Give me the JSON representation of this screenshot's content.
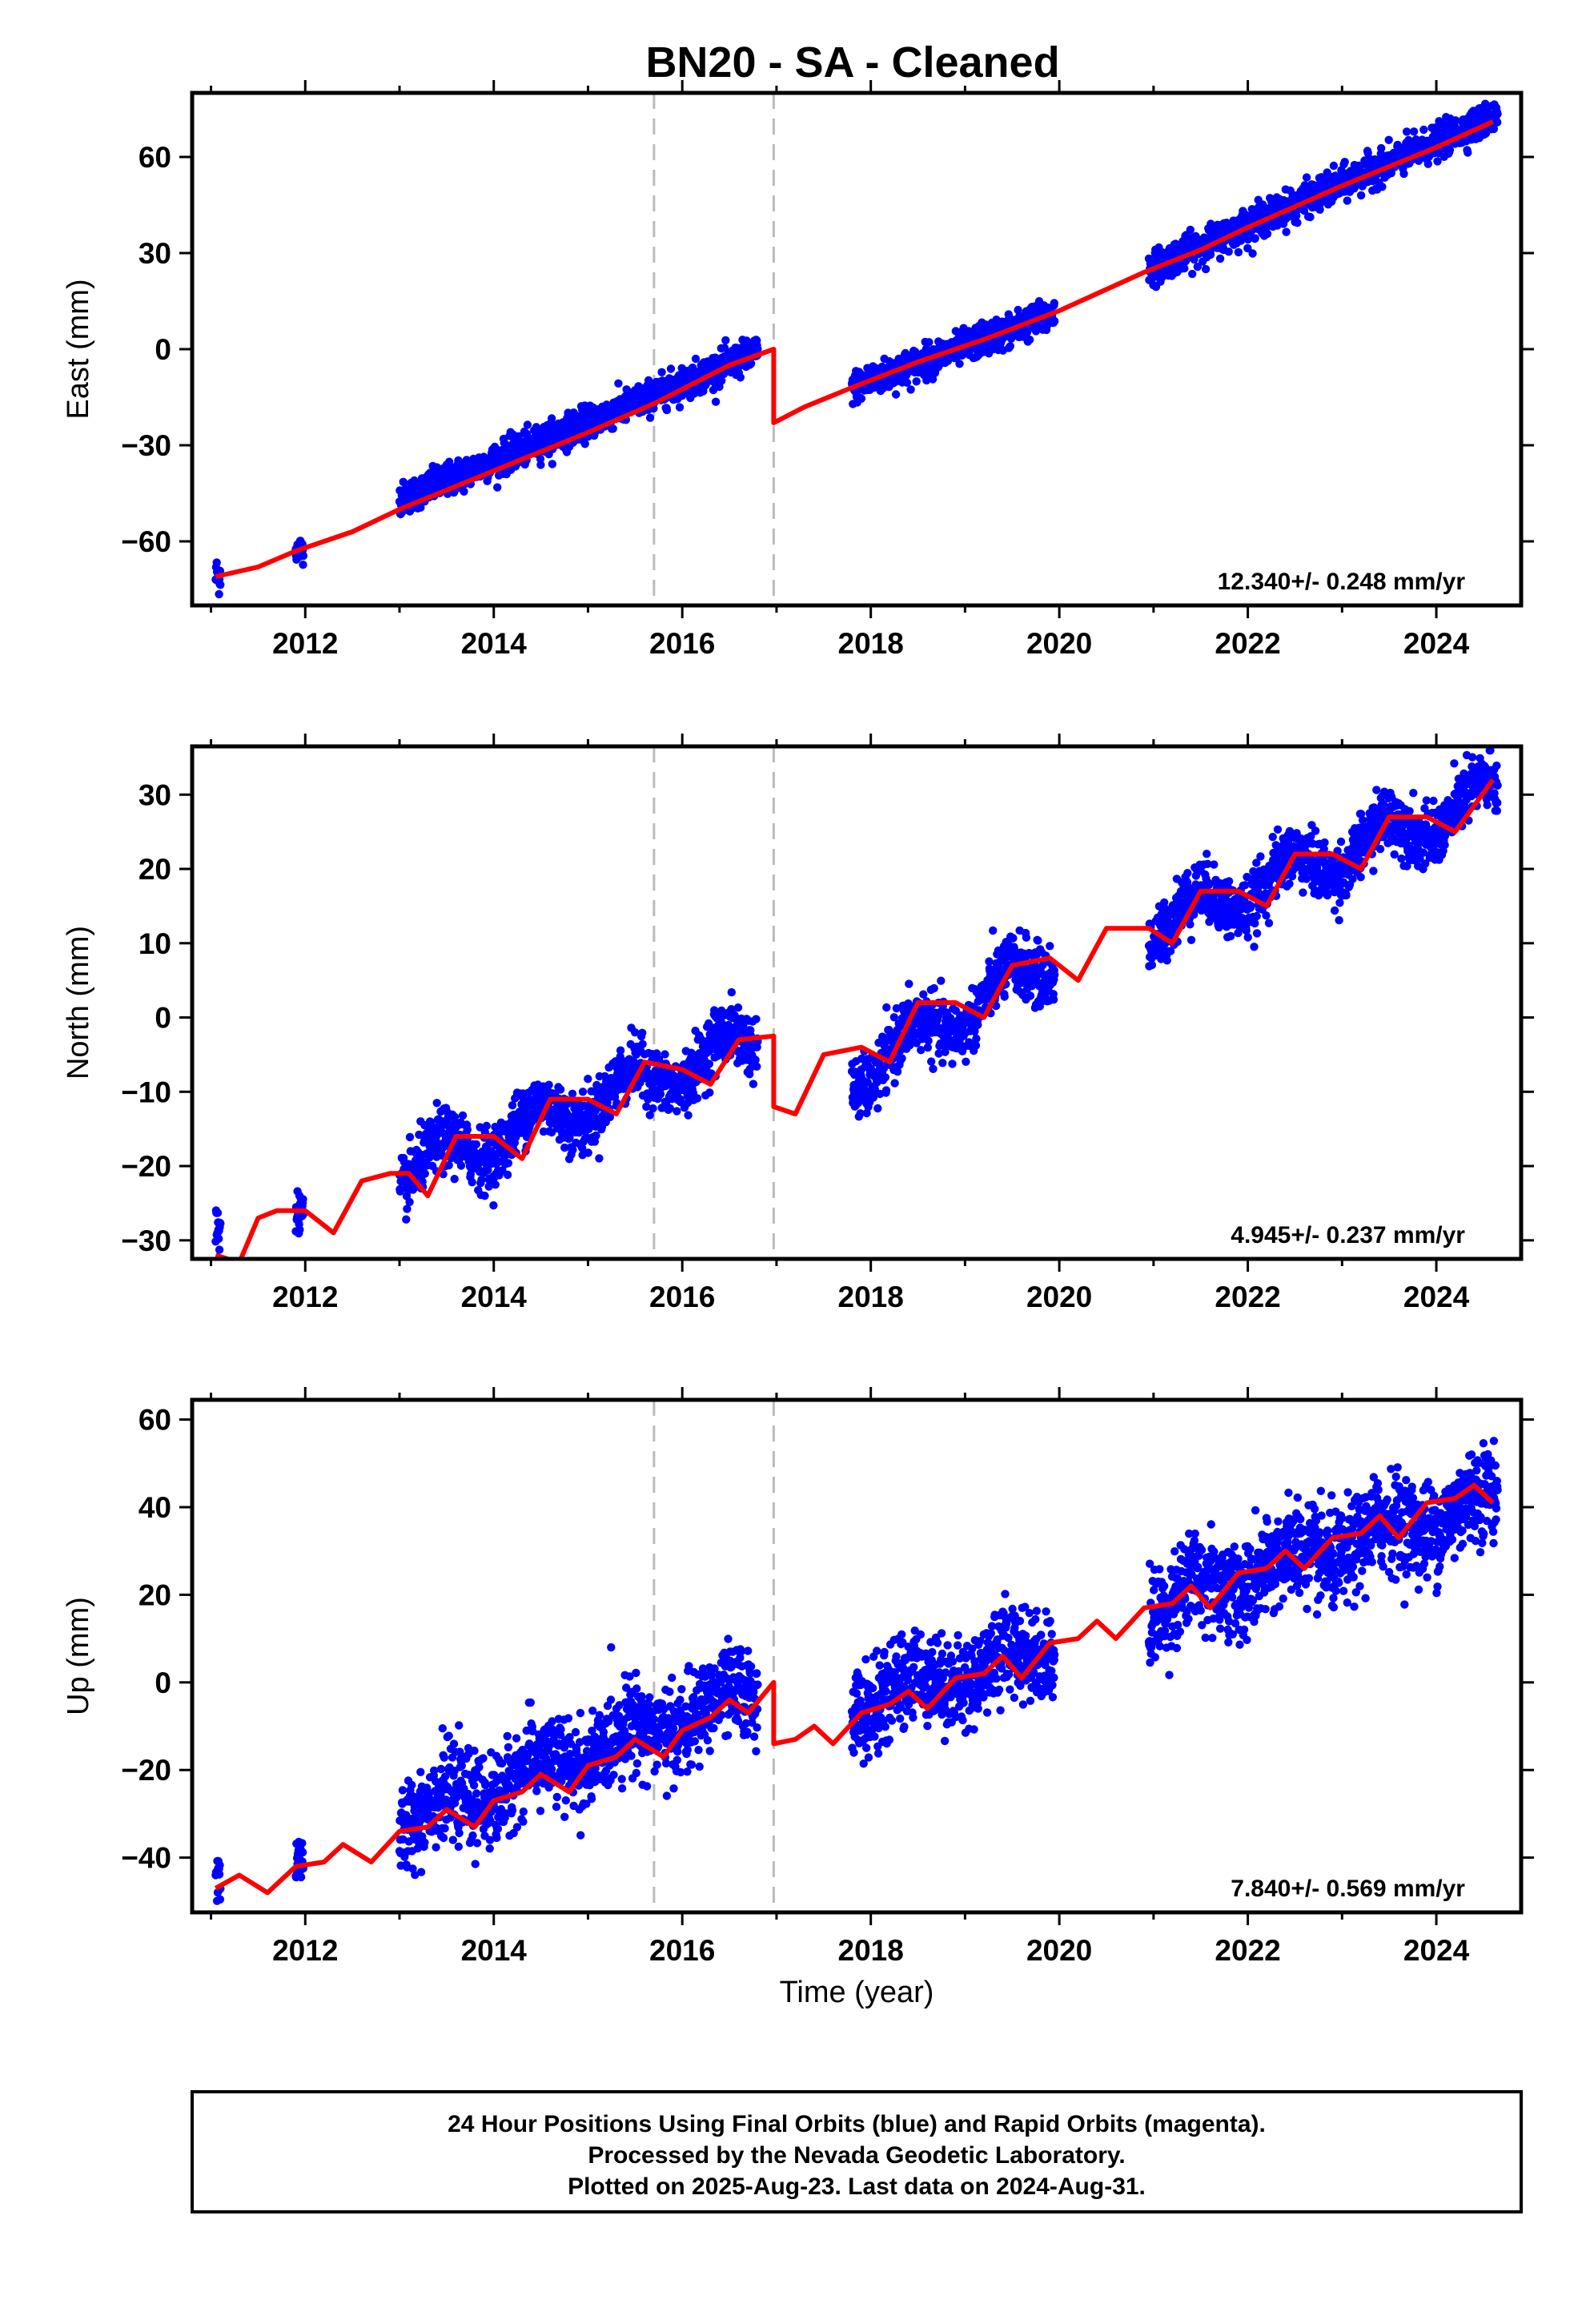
{
  "title": "BN20  - SA - Cleaned",
  "x_axis_title": "Time (year)",
  "colors": {
    "data": "#0000ff",
    "model": "#ff0000",
    "breaks": "#bbbbbb",
    "frame": "#000000"
  },
  "footer": {
    "line1": "24 Hour Positions Using Final Orbits (blue) and Rapid Orbits (magenta).",
    "line2": "Processed by the Nevada Geodetic Laboratory.",
    "line3": "Plotted on 2025-Aug-23. Last data on 2024-Aug-31."
  },
  "chart_data": [
    {
      "type": "scatter",
      "component": "east",
      "ylabel": "East (mm)",
      "rate": "12.340+/- 0.248 mm/yr",
      "xlim": [
        2010.8,
        2024.9
      ],
      "ylim": [
        -80,
        80
      ],
      "xticks": [
        2012,
        2014,
        2016,
        2018,
        2020,
        2022,
        2024
      ],
      "yticks": [
        -60,
        -30,
        0,
        30,
        60
      ],
      "breaks": [
        2015.7,
        2016.97
      ],
      "model": [
        [
          2011.05,
          -71
        ],
        [
          2011.5,
          -68
        ],
        [
          2011.9,
          -63
        ],
        [
          2012.5,
          -57
        ],
        [
          2013.0,
          -50
        ],
        [
          2014.0,
          -38
        ],
        [
          2015.0,
          -26
        ],
        [
          2015.7,
          -17
        ],
        [
          2016.5,
          -5
        ],
        [
          2016.97,
          0
        ],
        [
          2016.97,
          -23
        ],
        [
          2017.3,
          -18
        ],
        [
          2017.8,
          -12
        ],
        [
          2018.5,
          -4
        ],
        [
          2019.2,
          3
        ],
        [
          2020.0,
          12
        ],
        [
          2020.9,
          24
        ],
        [
          2021.5,
          31
        ],
        [
          2022.0,
          38
        ],
        [
          2023.0,
          51
        ],
        [
          2024.0,
          63
        ],
        [
          2024.6,
          71
        ]
      ],
      "segments": [
        {
          "start": 2011.05,
          "end": 2011.1,
          "y0": -71,
          "y1": -70,
          "sd": 3
        },
        {
          "start": 2011.9,
          "end": 2011.98,
          "y0": -63,
          "y1": -62,
          "sd": 2
        },
        {
          "start": 2013.0,
          "end": 2016.8,
          "y0": -47,
          "y1": -1,
          "sd": 2.5
        },
        {
          "start": 2017.8,
          "end": 2019.95,
          "y0": -12,
          "y1": 11,
          "sd": 2.5
        },
        {
          "start": 2020.95,
          "end": 2024.65,
          "y0": 25,
          "y1": 73,
          "sd": 2.5
        }
      ]
    },
    {
      "type": "scatter",
      "component": "north",
      "ylabel": "North (mm)",
      "rate": "4.945+/- 0.237 mm/yr",
      "xlim": [
        2010.8,
        2024.9
      ],
      "ylim": [
        -32.5,
        36.5
      ],
      "xticks": [
        2012,
        2014,
        2016,
        2018,
        2020,
        2022,
        2024
      ],
      "yticks": [
        -30,
        -20,
        -10,
        0,
        10,
        20,
        30
      ],
      "breaks": [
        2015.7,
        2016.97
      ],
      "model": [
        [
          2011.05,
          -32
        ],
        [
          2011.3,
          -33
        ],
        [
          2011.5,
          -27
        ],
        [
          2011.7,
          -26
        ],
        [
          2012.0,
          -26
        ],
        [
          2012.3,
          -29
        ],
        [
          2012.6,
          -22
        ],
        [
          2012.9,
          -21
        ],
        [
          2013.1,
          -21
        ],
        [
          2013.3,
          -24
        ],
        [
          2013.6,
          -16
        ],
        [
          2014.0,
          -16
        ],
        [
          2014.3,
          -19
        ],
        [
          2014.6,
          -11
        ],
        [
          2015.0,
          -11
        ],
        [
          2015.3,
          -13
        ],
        [
          2015.6,
          -6
        ],
        [
          2016.0,
          -7
        ],
        [
          2016.3,
          -9
        ],
        [
          2016.6,
          -3
        ],
        [
          2016.97,
          -2.5
        ],
        [
          2016.97,
          -12
        ],
        [
          2017.2,
          -13
        ],
        [
          2017.5,
          -5
        ],
        [
          2017.9,
          -4
        ],
        [
          2018.2,
          -6
        ],
        [
          2018.5,
          2
        ],
        [
          2018.9,
          2
        ],
        [
          2019.2,
          0
        ],
        [
          2019.5,
          7
        ],
        [
          2019.9,
          8
        ],
        [
          2020.2,
          5
        ],
        [
          2020.5,
          12
        ],
        [
          2020.95,
          12
        ],
        [
          2021.2,
          10
        ],
        [
          2021.5,
          17
        ],
        [
          2021.9,
          17
        ],
        [
          2022.2,
          15
        ],
        [
          2022.5,
          22
        ],
        [
          2022.9,
          22
        ],
        [
          2023.2,
          20
        ],
        [
          2023.5,
          27
        ],
        [
          2023.9,
          27
        ],
        [
          2024.2,
          25
        ],
        [
          2024.6,
          32
        ]
      ],
      "segments": [
        {
          "start": 2011.05,
          "end": 2011.1,
          "y0": -29,
          "y1": -28,
          "sd": 2
        },
        {
          "start": 2011.9,
          "end": 2011.98,
          "y0": -26,
          "y1": -26,
          "sd": 1.2
        },
        {
          "start": 2013.0,
          "end": 2016.8,
          "y0": -21,
          "y1": -3,
          "sd": 2,
          "amp": 2.5
        },
        {
          "start": 2017.8,
          "end": 2019.95,
          "y0": -8,
          "y1": 8,
          "sd": 2,
          "amp": 2.5
        },
        {
          "start": 2020.95,
          "end": 2024.65,
          "y0": 12,
          "y1": 30,
          "sd": 2,
          "amp": 2.5
        }
      ]
    },
    {
      "type": "scatter",
      "component": "up",
      "ylabel": "Up (mm)",
      "xlabel": "Time (year)",
      "rate": "7.840+/- 0.569 mm/yr",
      "xlim": [
        2010.8,
        2024.9
      ],
      "ylim": [
        -52.5,
        64.5
      ],
      "xticks": [
        2012,
        2014,
        2016,
        2018,
        2020,
        2022,
        2024
      ],
      "yticks": [
        -40,
        -20,
        0,
        20,
        40,
        60
      ],
      "breaks": [
        2015.7,
        2016.97
      ],
      "model": [
        [
          2011.05,
          -47
        ],
        [
          2011.3,
          -44
        ],
        [
          2011.6,
          -48
        ],
        [
          2011.9,
          -42
        ],
        [
          2012.2,
          -41
        ],
        [
          2012.4,
          -37
        ],
        [
          2012.7,
          -41
        ],
        [
          2013.0,
          -34
        ],
        [
          2013.3,
          -33
        ],
        [
          2013.5,
          -29
        ],
        [
          2013.8,
          -33
        ],
        [
          2014.0,
          -27
        ],
        [
          2014.3,
          -25
        ],
        [
          2014.5,
          -21
        ],
        [
          2014.8,
          -25
        ],
        [
          2015.0,
          -19
        ],
        [
          2015.3,
          -17
        ],
        [
          2015.5,
          -13
        ],
        [
          2015.8,
          -17
        ],
        [
          2016.0,
          -11
        ],
        [
          2016.3,
          -8
        ],
        [
          2016.5,
          -4
        ],
        [
          2016.7,
          -7
        ],
        [
          2016.97,
          0
        ],
        [
          2016.97,
          -14
        ],
        [
          2017.2,
          -13
        ],
        [
          2017.4,
          -10
        ],
        [
          2017.6,
          -14
        ],
        [
          2017.9,
          -7
        ],
        [
          2018.2,
          -5
        ],
        [
          2018.4,
          -2
        ],
        [
          2018.6,
          -6
        ],
        [
          2018.9,
          1
        ],
        [
          2019.2,
          2
        ],
        [
          2019.4,
          6
        ],
        [
          2019.6,
          1
        ],
        [
          2019.9,
          9
        ],
        [
          2020.2,
          10
        ],
        [
          2020.4,
          14
        ],
        [
          2020.6,
          10
        ],
        [
          2020.9,
          17
        ],
        [
          2021.2,
          18
        ],
        [
          2021.4,
          22
        ],
        [
          2021.6,
          17
        ],
        [
          2021.9,
          25
        ],
        [
          2022.2,
          26
        ],
        [
          2022.4,
          30
        ],
        [
          2022.6,
          26
        ],
        [
          2022.9,
          33
        ],
        [
          2023.2,
          34
        ],
        [
          2023.4,
          38
        ],
        [
          2023.6,
          33
        ],
        [
          2023.9,
          41
        ],
        [
          2024.2,
          42
        ],
        [
          2024.4,
          45
        ],
        [
          2024.6,
          41
        ]
      ],
      "segments": [
        {
          "start": 2011.05,
          "end": 2011.1,
          "y0": -45,
          "y1": -44,
          "sd": 3
        },
        {
          "start": 2011.9,
          "end": 2011.98,
          "y0": -40,
          "y1": -40,
          "sd": 3
        },
        {
          "start": 2013.0,
          "end": 2016.8,
          "y0": -32,
          "y1": -2,
          "sd": 5,
          "amp": 3
        },
        {
          "start": 2017.8,
          "end": 2019.95,
          "y0": -5,
          "y1": 8,
          "sd": 5,
          "amp": 3
        },
        {
          "start": 2020.95,
          "end": 2024.65,
          "y0": 17,
          "y1": 42,
          "sd": 5.5,
          "amp": 3
        }
      ]
    }
  ]
}
